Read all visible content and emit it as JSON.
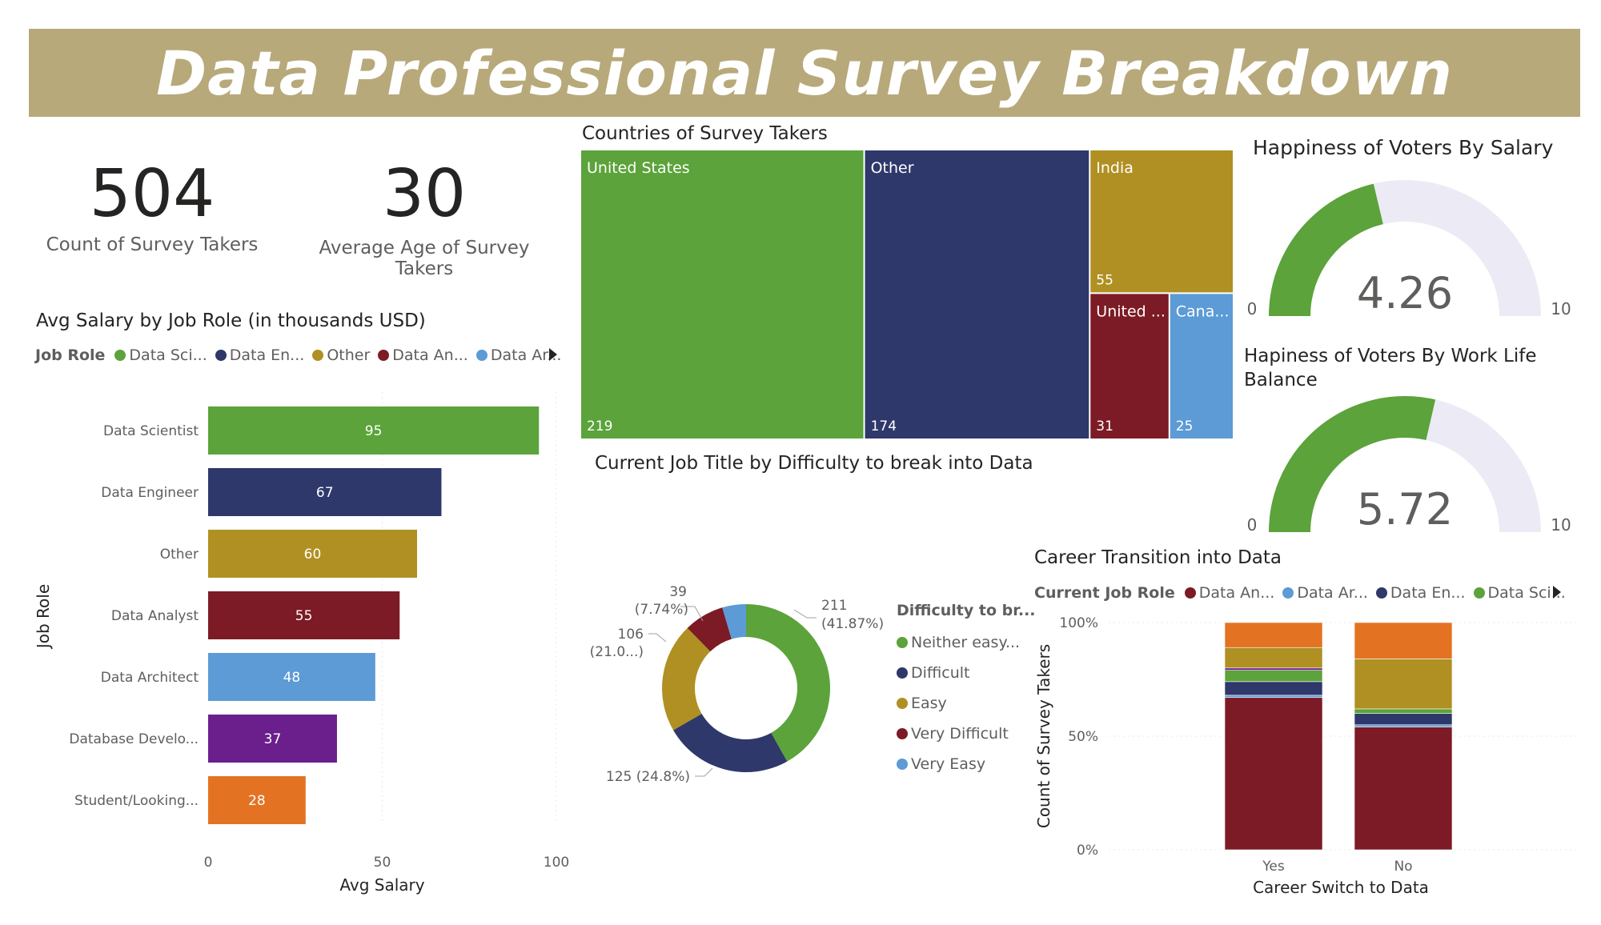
{
  "title": "Data Professional Survey Breakdown",
  "kpis": [
    {
      "value": "504",
      "label": "Count of Survey Takers"
    },
    {
      "value": "30",
      "label": "Average Age of Survey Takers"
    }
  ],
  "colors": {
    "green": "#5ba33a",
    "navy": "#2e386b",
    "gold": "#b09022",
    "maroon": "#7c1b25",
    "blue": "#5c9bd5",
    "purple": "#6a1f8c",
    "orange": "#e37322",
    "gauge_bg": "#ecebf5",
    "banner": "#b7a97a"
  },
  "chart_data": [
    {
      "id": "salary",
      "type": "bar",
      "title": "Avg Salary by Job Role (in thousands USD)",
      "legend_title": "Job Role",
      "legend": [
        "Data Sci...",
        "Data En...",
        "Other",
        "Data An...",
        "Data Ar..."
      ],
      "categories": [
        "Data Scientist",
        "Data Engineer",
        "Other",
        "Data Analyst",
        "Data Architect",
        "Database Develo...",
        "Student/Looking..."
      ],
      "values": [
        95,
        67,
        60,
        55,
        48,
        37,
        28
      ],
      "colors": [
        "#5ba33a",
        "#2e386b",
        "#b09022",
        "#7c1b25",
        "#5c9bd5",
        "#6a1f8c",
        "#e37322"
      ],
      "xlabel": "Avg Salary",
      "ylabel": "Job Role",
      "xlim": [
        0,
        100
      ],
      "xticks": [
        "0",
        "50",
        "100"
      ],
      "orientation": "horizontal"
    },
    {
      "id": "countries",
      "type": "treemap",
      "title": "Countries of Survey Takers",
      "items": [
        {
          "label": "United States",
          "value": 219,
          "color": "#5ba33a"
        },
        {
          "label": "Other",
          "value": 174,
          "color": "#2e386b"
        },
        {
          "label": "India",
          "value": 55,
          "color": "#b09022"
        },
        {
          "label": "United ...",
          "value": 31,
          "color": "#7c1b25"
        },
        {
          "label": "Cana...",
          "value": 25,
          "color": "#5c9bd5"
        }
      ]
    },
    {
      "id": "difficulty",
      "type": "pie",
      "title": "Current Job Title by Difficulty to break into Data",
      "legend_title": "Difficulty to br...",
      "slices": [
        {
          "label": "Neither easy...",
          "value": 211,
          "pct": "(41.87%)",
          "color": "#5ba33a"
        },
        {
          "label": "Difficult",
          "value": 125,
          "pct": "(24.8%)",
          "color": "#2e386b"
        },
        {
          "label": "Easy",
          "value": 106,
          "pct": "(21.0...)",
          "color": "#b09022"
        },
        {
          "label": "Very Difficult",
          "value": 39,
          "pct": "(7.74%)",
          "color": "#7c1b25"
        },
        {
          "label": "Very Easy",
          "value": 23,
          "pct": "",
          "color": "#5c9bd5"
        }
      ],
      "data_labels": {
        "neither": {
          "value": "211",
          "pct": "(41.87%)"
        },
        "difficult": {
          "value": "125 (24.8%)"
        },
        "easy": {
          "value": "106",
          "pct": "(21.0...)"
        },
        "very_difficult": {
          "value": "39",
          "pct": "(7.74%)"
        }
      }
    },
    {
      "id": "gauge_salary",
      "type": "gauge",
      "title": "Happiness of Voters By Salary",
      "value": 4.26,
      "display": "4.26",
      "min": 0,
      "max": 10,
      "min_label": "0",
      "max_label": "10"
    },
    {
      "id": "gauge_wlb",
      "type": "gauge",
      "title": "Hapiness of Voters By Work Life Balance",
      "value": 5.72,
      "display": "5.72",
      "min": 0,
      "max": 10,
      "min_label": "0",
      "max_label": "10"
    },
    {
      "id": "career",
      "type": "bar",
      "stacked": "100%",
      "title": "Career Transition into Data",
      "legend_title": "Current Job Role",
      "legend": [
        "Data An...",
        "Data Ar...",
        "Data En...",
        "Data Sci..."
      ],
      "categories": [
        "Yes",
        "No"
      ],
      "xlabel": "Career Switch to Data",
      "ylabel": "Count of Survey Takers",
      "yticks": [
        "0%",
        "50%",
        "100%"
      ],
      "series": [
        {
          "name": "Data An...",
          "color": "#7c1b25",
          "values": [
            67,
            54
          ]
        },
        {
          "name": "Data Ar...",
          "color": "#5c9bd5",
          "values": [
            1,
            1
          ]
        },
        {
          "name": "Data En...",
          "color": "#2e386b",
          "values": [
            6,
            5
          ]
        },
        {
          "name": "Data Sci...",
          "color": "#5ba33a",
          "values": [
            5,
            2
          ]
        },
        {
          "name": "",
          "color": "#6a1f8c",
          "values": [
            1,
            0
          ]
        },
        {
          "name": "",
          "color": "#b09022",
          "values": [
            9,
            22
          ]
        },
        {
          "name": "",
          "color": "#e37322",
          "values": [
            11,
            16
          ]
        }
      ]
    }
  ]
}
